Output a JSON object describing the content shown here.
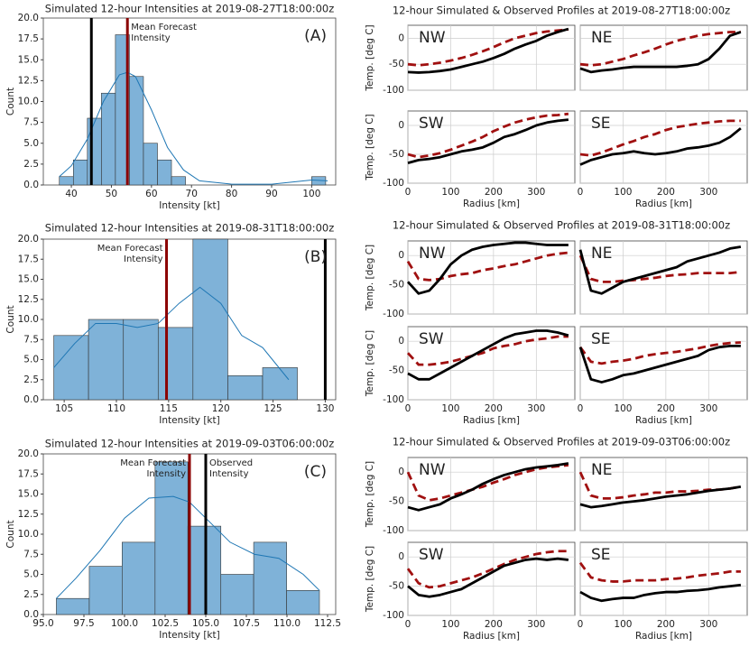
{
  "chart_data": [
    {
      "type": "histogram",
      "title": "Simulated 12-hour Intensities at 2019-08-27T18:00:00z",
      "panel_label": "(A)",
      "x_label": "Intensity [kt]",
      "y_label": "Count",
      "bins": [
        37,
        40.5,
        44,
        47.5,
        51,
        54.5,
        58,
        61.5,
        65,
        68.5,
        72,
        75.5,
        79,
        82.5,
        86,
        89.5,
        93,
        96.5,
        100,
        103.5
      ],
      "counts": [
        1,
        3,
        8,
        11,
        18,
        13,
        5,
        3,
        1,
        0,
        0,
        0,
        0,
        0,
        0,
        0,
        0,
        0,
        1
      ],
      "color": "#7fb2d8",
      "edge_color": "#333333",
      "kde": {
        "color": "#1f77b4",
        "x": [
          37,
          40,
          44,
          48,
          52,
          54,
          56,
          60,
          64,
          68,
          72,
          80,
          90,
          100,
          104
        ],
        "values": [
          1,
          2.3,
          5.5,
          10,
          13.2,
          13.5,
          13,
          9,
          4.5,
          1.8,
          0.5,
          0.1,
          0.1,
          0.6,
          0.5
        ]
      },
      "vlines": [
        {
          "value": 45,
          "color": "#000000"
        },
        {
          "value": 54,
          "color": "#8b0000",
          "text": [
            "Mean Forecast",
            "Intensity"
          ],
          "side": "right"
        }
      ],
      "xlim": [
        33,
        106
      ],
      "xticks": [
        40,
        50,
        60,
        70,
        80,
        90,
        100
      ],
      "ylim": [
        0,
        20
      ],
      "yticks": [
        {
          "value": 0,
          "label": "0.0"
        },
        2.5,
        {
          "value": 5,
          "label": "5.0"
        },
        7.5,
        {
          "value": 10,
          "label": "10.0"
        },
        12.5,
        {
          "value": 15,
          "label": "15.0"
        },
        17.5,
        {
          "value": 20,
          "label": "20.0"
        }
      ]
    },
    {
      "type": "histogram",
      "title": "Simulated 12-hour Intensities at 2019-08-31T18:00:00z",
      "panel_label": "(B)",
      "x_label": "Intensity [kt]",
      "y_label": "Count",
      "bins": [
        104,
        107.33,
        110.67,
        114,
        117.33,
        120.67,
        124,
        127.33
      ],
      "counts": [
        8,
        10,
        10,
        9,
        20,
        3,
        4
      ],
      "color": "#7fb2d8",
      "edge_color": "#333333",
      "kde": {
        "color": "#1f77b4",
        "x": [
          104,
          106,
          108,
          110,
          112,
          114,
          116,
          118,
          120,
          122,
          124,
          126.5
        ],
        "values": [
          4,
          7,
          9.5,
          9.5,
          9,
          9.5,
          12,
          14,
          12,
          8,
          6.5,
          2.5
        ]
      },
      "vlines": [
        {
          "value": 114.8,
          "color": "#8b0000",
          "text": [
            "Mean Forecast",
            "Intensity"
          ],
          "side": "left"
        },
        {
          "value": 130,
          "color": "#000000"
        }
      ],
      "xlim": [
        103,
        131
      ],
      "xticks": [
        105,
        110,
        115,
        120,
        125,
        130
      ],
      "ylim": [
        0,
        20
      ],
      "yticks": [
        {
          "value": 0,
          "label": "0.0"
        },
        2.5,
        {
          "value": 5,
          "label": "5.0"
        },
        7.5,
        {
          "value": 10,
          "label": "10.0"
        },
        12.5,
        {
          "value": 15,
          "label": "15.0"
        },
        17.5,
        {
          "value": 20,
          "label": "20.0"
        }
      ]
    },
    {
      "type": "histogram",
      "title": "Simulated 12-hour Intensities at 2019-09-03T06:00:00z",
      "panel_label": "(C)",
      "x_label": "Intensity [kt]",
      "y_label": "Count",
      "bins": [
        95.8,
        97.83,
        99.85,
        101.88,
        103.9,
        105.93,
        107.95,
        109.98,
        112
      ],
      "counts": [
        2,
        6,
        9,
        19,
        11,
        5,
        9,
        3
      ],
      "color": "#7fb2d8",
      "edge_color": "#333333",
      "kde": {
        "color": "#1f77b4",
        "x": [
          95.8,
          97,
          98.5,
          100,
          101.5,
          103,
          104,
          105,
          106.5,
          108,
          109.5,
          111,
          112
        ],
        "values": [
          2,
          4.5,
          8,
          12,
          14.5,
          14.7,
          14,
          12,
          9,
          7.5,
          7,
          5,
          3
        ]
      },
      "vlines": [
        {
          "value": 104,
          "color": "#8b0000",
          "text": [
            "Mean Forecast",
            "Intensity"
          ],
          "side": "left"
        },
        {
          "value": 105,
          "color": "#000000",
          "text": [
            "Observed",
            "Intensity"
          ],
          "side": "right"
        }
      ],
      "xlim": [
        95,
        113
      ],
      "xticks": [
        {
          "value": 95,
          "label": "95.0"
        },
        97.5,
        {
          "value": 100,
          "label": "100.0"
        },
        102.5,
        {
          "value": 105,
          "label": "105.0"
        },
        107.5,
        {
          "value": 110,
          "label": "110.0"
        },
        112.5
      ],
      "ylim": [
        0,
        20
      ],
      "yticks": [
        {
          "value": 0,
          "label": "0.0"
        },
        2.5,
        {
          "value": 5,
          "label": "5.0"
        },
        7.5,
        {
          "value": 10,
          "label": "10.0"
        },
        12.5,
        {
          "value": 15,
          "label": "15.0"
        },
        17.5,
        {
          "value": 20,
          "label": "20.0"
        }
      ]
    },
    {
      "type": "profiles",
      "title": "12-hour Simulated & Observed Profiles at 2019-08-27T18:00:00z",
      "x_label": "Radius [km]",
      "y_label": "Temp. [deg C]",
      "grid": true,
      "mean_color": "#a01010",
      "observed_color": "#000000",
      "x": [
        0,
        25,
        50,
        75,
        100,
        125,
        150,
        175,
        200,
        225,
        250,
        275,
        300,
        325,
        350,
        375
      ],
      "xlim": [
        0,
        390
      ],
      "xticks": [
        0,
        100,
        200,
        300
      ],
      "ylim": [
        -100,
        25
      ],
      "yticks": [
        -100,
        -50,
        0
      ],
      "panels": [
        {
          "label": "NW",
          "mean": [
            -50,
            -52,
            -50,
            -47,
            -43,
            -38,
            -32,
            -25,
            -17,
            -8,
            0,
            5,
            10,
            13,
            15,
            17
          ],
          "observed": [
            -65,
            -66,
            -65,
            -63,
            -60,
            -55,
            -50,
            -45,
            -38,
            -30,
            -20,
            -12,
            -5,
            5,
            12,
            18
          ]
        },
        {
          "label": "NE",
          "mean": [
            -50,
            -52,
            -50,
            -45,
            -40,
            -33,
            -27,
            -20,
            -12,
            -5,
            0,
            5,
            8,
            10,
            12,
            12
          ],
          "observed": [
            -58,
            -65,
            -62,
            -60,
            -57,
            -55,
            -55,
            -55,
            -55,
            -55,
            -53,
            -50,
            -40,
            -20,
            5,
            12
          ]
        },
        {
          "label": "SW",
          "mean": [
            -50,
            -55,
            -52,
            -48,
            -42,
            -35,
            -28,
            -20,
            -10,
            -2,
            5,
            10,
            14,
            17,
            18,
            20
          ],
          "observed": [
            -65,
            -60,
            -58,
            -55,
            -50,
            -45,
            -42,
            -38,
            -30,
            -20,
            -15,
            -8,
            0,
            5,
            8,
            10
          ]
        },
        {
          "label": "SE",
          "mean": [
            -50,
            -52,
            -47,
            -40,
            -33,
            -27,
            -20,
            -15,
            -8,
            -3,
            0,
            3,
            5,
            7,
            8,
            8
          ],
          "observed": [
            -68,
            -60,
            -55,
            -50,
            -48,
            -45,
            -48,
            -50,
            -48,
            -45,
            -40,
            -38,
            -35,
            -30,
            -20,
            -5
          ]
        }
      ]
    },
    {
      "type": "profiles",
      "title": "12-hour Simulated & Observed Profiles at 2019-08-31T18:00:00z",
      "x_label": "Radius [km]",
      "y_label": "Temp. [deg C]",
      "grid": true,
      "mean_color": "#a01010",
      "observed_color": "#000000",
      "x": [
        0,
        25,
        50,
        75,
        100,
        125,
        150,
        175,
        200,
        225,
        250,
        275,
        300,
        325,
        350,
        375
      ],
      "xlim": [
        0,
        390
      ],
      "xticks": [
        0,
        100,
        200,
        300
      ],
      "ylim": [
        -100,
        25
      ],
      "yticks": [
        -100,
        -50,
        0
      ],
      "panels": [
        {
          "label": "NW",
          "mean": [
            -10,
            -40,
            -42,
            -40,
            -35,
            -32,
            -30,
            -25,
            -22,
            -18,
            -15,
            -10,
            -5,
            0,
            3,
            5
          ],
          "observed": [
            -45,
            -65,
            -60,
            -40,
            -15,
            0,
            10,
            15,
            18,
            20,
            22,
            22,
            20,
            18,
            18,
            18
          ]
        },
        {
          "label": "NE",
          "mean": [
            0,
            -40,
            -45,
            -45,
            -43,
            -42,
            -40,
            -38,
            -35,
            -33,
            -32,
            -30,
            -30,
            -30,
            -30,
            -28
          ],
          "observed": [
            10,
            -60,
            -65,
            -55,
            -45,
            -40,
            -35,
            -30,
            -25,
            -20,
            -10,
            -5,
            0,
            5,
            12,
            15
          ]
        },
        {
          "label": "SW",
          "mean": [
            -20,
            -40,
            -40,
            -38,
            -35,
            -30,
            -25,
            -20,
            -12,
            -8,
            -5,
            0,
            3,
            5,
            8,
            8
          ],
          "observed": [
            -55,
            -65,
            -65,
            -55,
            -45,
            -35,
            -25,
            -15,
            -5,
            5,
            12,
            15,
            18,
            18,
            15,
            10
          ]
        },
        {
          "label": "SE",
          "mean": [
            -10,
            -35,
            -38,
            -35,
            -33,
            -30,
            -25,
            -22,
            -20,
            -18,
            -15,
            -12,
            -8,
            -5,
            -3,
            -2
          ],
          "observed": [
            -10,
            -65,
            -70,
            -65,
            -58,
            -55,
            -50,
            -45,
            -40,
            -35,
            -30,
            -25,
            -15,
            -10,
            -8,
            -8
          ]
        }
      ]
    },
    {
      "type": "profiles",
      "title": "12-hour Simulated & Observed Profiles at 2019-09-03T06:00:00z",
      "x_label": "Radius [km]",
      "y_label": "Temp. [deg C]",
      "grid": true,
      "mean_color": "#a01010",
      "observed_color": "#000000",
      "x": [
        0,
        25,
        50,
        75,
        100,
        125,
        150,
        175,
        200,
        225,
        250,
        275,
        300,
        325,
        350,
        375
      ],
      "xlim": [
        0,
        390
      ],
      "xticks": [
        0,
        100,
        200,
        300
      ],
      "ylim": [
        -100,
        25
      ],
      "yticks": [
        -100,
        -50,
        0
      ],
      "panels": [
        {
          "label": "NW",
          "mean": [
            0,
            -40,
            -48,
            -45,
            -40,
            -35,
            -30,
            -25,
            -18,
            -12,
            -5,
            0,
            5,
            8,
            10,
            12
          ],
          "observed": [
            -60,
            -65,
            -60,
            -55,
            -45,
            -38,
            -30,
            -20,
            -12,
            -5,
            0,
            5,
            8,
            10,
            12,
            15
          ]
        },
        {
          "label": "NE",
          "mean": [
            0,
            -40,
            -45,
            -45,
            -43,
            -40,
            -38,
            -35,
            -35,
            -33,
            -33,
            -32,
            -30,
            -30,
            -28,
            -25
          ],
          "observed": [
            -55,
            -60,
            -58,
            -55,
            -52,
            -50,
            -48,
            -45,
            -42,
            -40,
            -38,
            -35,
            -32,
            -30,
            -28,
            -25
          ]
        },
        {
          "label": "SW",
          "mean": [
            -20,
            -45,
            -52,
            -50,
            -45,
            -40,
            -35,
            -28,
            -20,
            -12,
            -5,
            0,
            5,
            8,
            10,
            10
          ],
          "observed": [
            -50,
            -65,
            -68,
            -65,
            -60,
            -55,
            -45,
            -35,
            -25,
            -15,
            -10,
            -5,
            -3,
            -5,
            -3,
            -5
          ]
        },
        {
          "label": "SE",
          "mean": [
            -10,
            -35,
            -40,
            -42,
            -42,
            -40,
            -40,
            -40,
            -38,
            -37,
            -35,
            -32,
            -30,
            -28,
            -25,
            -25
          ],
          "observed": [
            -60,
            -70,
            -75,
            -72,
            -70,
            -70,
            -65,
            -62,
            -60,
            -60,
            -58,
            -57,
            -55,
            -52,
            -50,
            -48
          ]
        }
      ]
    }
  ]
}
